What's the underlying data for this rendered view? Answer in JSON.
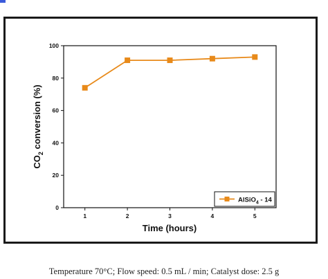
{
  "caption": "Temperature 70°C; Flow speed: 0.5 mL / min; Catalyst dose: 2.5 g",
  "chart_data": {
    "type": "line",
    "xlabel": "Time (hours)",
    "ylabel": {
      "pre": "CO",
      "sub": "2",
      "post": " conversion (%)"
    },
    "x": [
      1,
      2,
      3,
      4,
      5
    ],
    "xlim": [
      0.5,
      5.5
    ],
    "ylim": [
      0,
      100
    ],
    "xticks": [
      1,
      2,
      3,
      4,
      5
    ],
    "yticks": [
      0,
      20,
      40,
      60,
      80,
      100
    ],
    "grid": false,
    "legend_position": "bottom-right",
    "series": [
      {
        "name": {
          "pre": "AlSiO",
          "sub": "4",
          "post": " - 14"
        },
        "values": [
          74,
          91,
          91,
          92,
          93
        ],
        "color": "#e88a1a",
        "marker": "square"
      }
    ]
  }
}
